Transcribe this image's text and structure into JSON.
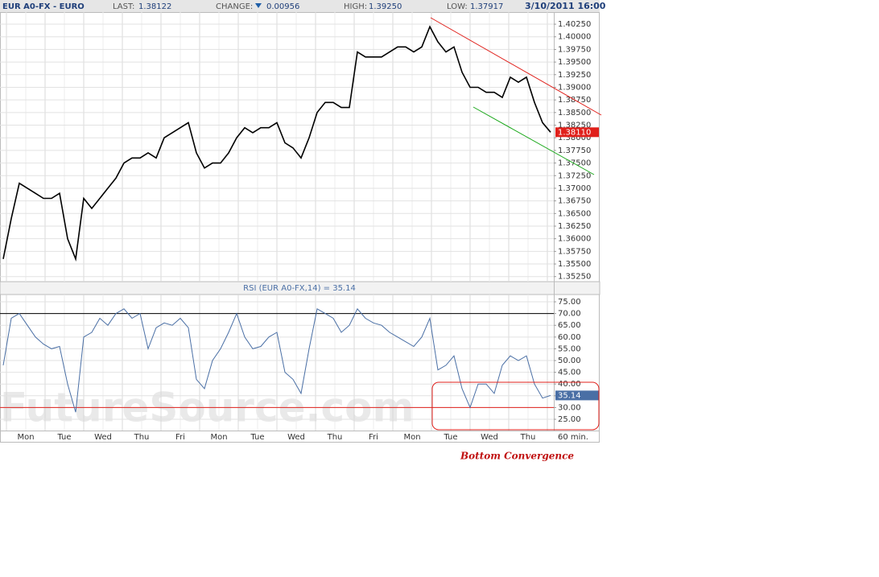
{
  "header": {
    "symbol": "EUR A0-FX - EURO",
    "last_label": "LAST:",
    "last": "1.38122",
    "change_label": "CHANGE:",
    "change": "0.00956",
    "high_label": "HIGH:",
    "high": "1.39250",
    "low_label": "LOW:",
    "low": "1.37917",
    "datetime": "3/10/2011 16:00"
  },
  "watermark": "FutureSource.com",
  "annotation": "Bottom Convergence",
  "chart_data": [
    {
      "type": "line",
      "color": "#000000",
      "ylim": [
        1.3515,
        1.4049
      ],
      "yticks": [
        {
          "value": 1.3525,
          "label": "1.35250"
        },
        {
          "value": 1.355,
          "label": "1.35500"
        },
        {
          "value": 1.3575,
          "label": "1.35750"
        },
        {
          "value": 1.36,
          "label": "1.36000"
        },
        {
          "value": 1.3625,
          "label": "1.36250"
        },
        {
          "value": 1.365,
          "label": "1.36500"
        },
        {
          "value": 1.3675,
          "label": "1.36750"
        },
        {
          "value": 1.37,
          "label": "1.37000"
        },
        {
          "value": 1.3725,
          "label": "1.37250"
        },
        {
          "value": 1.375,
          "label": "1.37500"
        },
        {
          "value": 1.3775,
          "label": "1.37750"
        },
        {
          "value": 1.38,
          "label": "1.38000"
        },
        {
          "value": 1.3825,
          "label": "1.38250"
        },
        {
          "value": 1.385,
          "label": "1.38500"
        },
        {
          "value": 1.3875,
          "label": "1.38750"
        },
        {
          "value": 1.39,
          "label": "1.39000"
        },
        {
          "value": 1.3925,
          "label": "1.39250"
        },
        {
          "value": 1.395,
          "label": "1.39500"
        },
        {
          "value": 1.3975,
          "label": "1.39750"
        },
        {
          "value": 1.4,
          "label": "1.40000"
        },
        {
          "value": 1.4025,
          "label": "1.40250"
        }
      ],
      "grid": true,
      "last_value": {
        "value": 1.3811,
        "label": "1.38110",
        "color": "#e0201b"
      },
      "values": [
        1.356,
        1.364,
        1.371,
        1.37,
        1.369,
        1.368,
        1.368,
        1.369,
        1.36,
        1.356,
        1.368,
        1.366,
        1.368,
        1.37,
        1.372,
        1.375,
        1.376,
        1.376,
        1.377,
        1.376,
        1.38,
        1.381,
        1.382,
        1.383,
        1.377,
        1.374,
        1.375,
        1.375,
        1.377,
        1.38,
        1.382,
        1.381,
        1.382,
        1.382,
        1.383,
        1.379,
        1.378,
        1.376,
        1.38,
        1.385,
        1.387,
        1.387,
        1.386,
        1.386,
        1.397,
        1.396,
        1.396,
        1.396,
        1.397,
        1.398,
        1.398,
        1.397,
        1.398,
        1.402,
        1.399,
        1.397,
        1.398,
        1.393,
        1.39,
        1.39,
        1.389,
        1.389,
        1.388,
        1.392,
        1.391,
        1.392,
        1.387,
        1.383,
        1.3811
      ]
    },
    {
      "type": "line",
      "title": "RSI (EUR A0-FX,14) = 35.14",
      "color": "#4a6fa5",
      "ylim": [
        20.2,
        78.1
      ],
      "yticks": [
        {
          "value": 25,
          "label": "25.00"
        },
        {
          "value": 30,
          "label": "30.00"
        },
        {
          "value": 35,
          "label": "35.00"
        },
        {
          "value": 40,
          "label": "40.00"
        },
        {
          "value": 45,
          "label": "45.00"
        },
        {
          "value": 50,
          "label": "50.00"
        },
        {
          "value": 55,
          "label": "55.00"
        },
        {
          "value": 60,
          "label": "60.00"
        },
        {
          "value": 65,
          "label": "65.00"
        },
        {
          "value": 70,
          "label": "70.00"
        },
        {
          "value": 75,
          "label": "75.00"
        }
      ],
      "grid": true,
      "levels": [
        {
          "value": 70,
          "color": "#000000"
        },
        {
          "value": 30,
          "color": "#e0201b"
        }
      ],
      "last_value": {
        "value": 35.14,
        "color": "#4a6fa5"
      },
      "x_labels": [
        "Mon",
        "Tue",
        "Wed",
        "Thu",
        "Fri",
        "Mon",
        "Tue",
        "Wed",
        "Thu",
        "Fri",
        "Mon",
        "Tue",
        "Wed",
        "Thu"
      ],
      "x_unit": "60 min.",
      "values": [
        48,
        68,
        70,
        65,
        60,
        57,
        55,
        56,
        40,
        28,
        60,
        62,
        68,
        65,
        70,
        72,
        68,
        70,
        55,
        64,
        66,
        65,
        68,
        64,
        42,
        38,
        50,
        55,
        62,
        70,
        60,
        55,
        56,
        60,
        62,
        45,
        42,
        36,
        55,
        72,
        70,
        68,
        62,
        65,
        72,
        68,
        66,
        65,
        62,
        60,
        58,
        56,
        60,
        68,
        46,
        48,
        52,
        38,
        30,
        40,
        40,
        36,
        48,
        52,
        50,
        52,
        40,
        34,
        35.14
      ]
    }
  ]
}
